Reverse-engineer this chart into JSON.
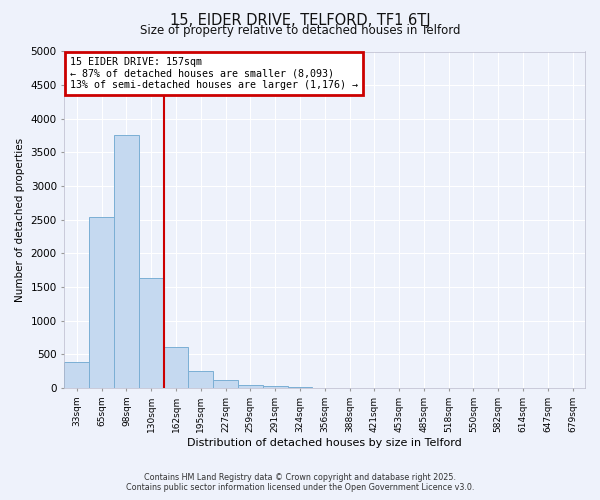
{
  "title_line1": "15, EIDER DRIVE, TELFORD, TF1 6TJ",
  "title_line2": "Size of property relative to detached houses in Telford",
  "xlabel": "Distribution of detached houses by size in Telford",
  "ylabel": "Number of detached properties",
  "bar_labels": [
    "33sqm",
    "65sqm",
    "98sqm",
    "130sqm",
    "162sqm",
    "195sqm",
    "227sqm",
    "259sqm",
    "291sqm",
    "324sqm",
    "356sqm",
    "388sqm",
    "421sqm",
    "453sqm",
    "485sqm",
    "518sqm",
    "550sqm",
    "582sqm",
    "614sqm",
    "647sqm",
    "679sqm"
  ],
  "bar_values": [
    390,
    2540,
    3760,
    1640,
    610,
    250,
    115,
    50,
    30,
    10,
    5,
    0,
    0,
    0,
    0,
    0,
    0,
    0,
    0,
    0,
    0
  ],
  "bar_color": "#c5d9f0",
  "bar_edge_color": "#7bafd4",
  "vline_x": 3.5,
  "vline_color": "#cc0000",
  "annotation_title": "15 EIDER DRIVE: 157sqm",
  "annotation_line2": "← 87% of detached houses are smaller (8,093)",
  "annotation_line3": "13% of semi-detached houses are larger (1,176) →",
  "annotation_box_color": "#cc0000",
  "ylim": [
    0,
    5000
  ],
  "yticks": [
    0,
    500,
    1000,
    1500,
    2000,
    2500,
    3000,
    3500,
    4000,
    4500,
    5000
  ],
  "bg_color": "#eef2fb",
  "grid_color": "#ffffff",
  "footer_line1": "Contains HM Land Registry data © Crown copyright and database right 2025.",
  "footer_line2": "Contains public sector information licensed under the Open Government Licence v3.0."
}
